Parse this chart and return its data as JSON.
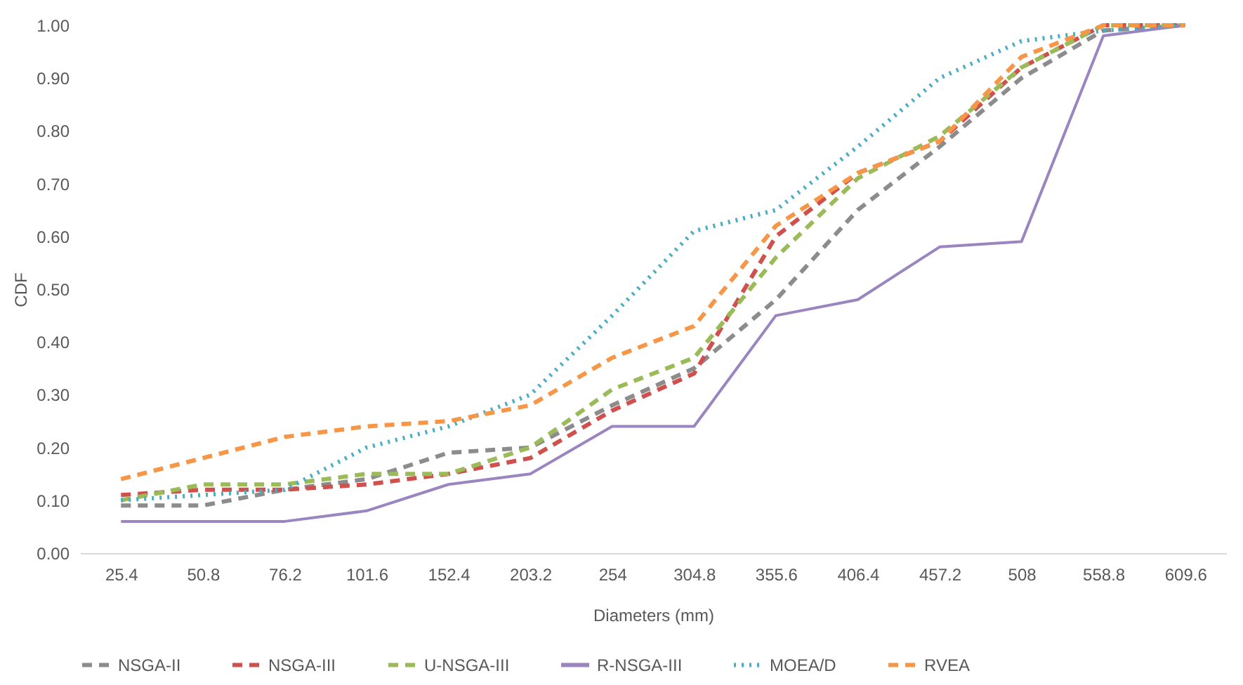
{
  "chart_data": {
    "type": "line",
    "xlabel": "Diameters (mm)",
    "ylabel": "CDF",
    "categories": [
      "25.4",
      "50.8",
      "76.2",
      "101.6",
      "152.4",
      "203.2",
      "254",
      "304.8",
      "355.6",
      "406.4",
      "457.2",
      "508",
      "558.8",
      "609.6"
    ],
    "series": [
      {
        "name": "NSGA-II",
        "color": "#8c8c8c",
        "line_style": "dashed",
        "values": [
          0.09,
          0.09,
          0.12,
          0.14,
          0.19,
          0.2,
          0.28,
          0.35,
          0.48,
          0.65,
          0.77,
          0.9,
          0.99,
          1.0
        ]
      },
      {
        "name": "NSGA-III",
        "color": "#d0504e",
        "line_style": "dashed",
        "values": [
          0.11,
          0.12,
          0.12,
          0.13,
          0.15,
          0.18,
          0.27,
          0.34,
          0.6,
          0.72,
          0.78,
          0.92,
          1.0,
          1.0
        ]
      },
      {
        "name": "U-NSGA-III",
        "color": "#9bbb59",
        "line_style": "dashed",
        "values": [
          0.1,
          0.13,
          0.13,
          0.15,
          0.15,
          0.2,
          0.31,
          0.37,
          0.56,
          0.71,
          0.79,
          0.92,
          1.0,
          1.0
        ]
      },
      {
        "name": "R-NSGA-III",
        "color": "#9a85c0",
        "line_style": "solid",
        "values": [
          0.06,
          0.06,
          0.06,
          0.08,
          0.13,
          0.15,
          0.24,
          0.24,
          0.45,
          0.48,
          0.58,
          0.59,
          0.98,
          1.0
        ]
      },
      {
        "name": "MOEA/D",
        "color": "#4bacc6",
        "line_style": "dotted",
        "values": [
          0.1,
          0.11,
          0.12,
          0.2,
          0.24,
          0.3,
          0.45,
          0.61,
          0.65,
          0.77,
          0.9,
          0.97,
          0.99,
          1.0
        ]
      },
      {
        "name": "RVEA",
        "color": "#f79646",
        "line_style": "dashed",
        "values": [
          0.14,
          0.18,
          0.22,
          0.24,
          0.25,
          0.28,
          0.37,
          0.43,
          0.62,
          0.72,
          0.78,
          0.94,
          1.0,
          1.0
        ]
      }
    ],
    "ylim": [
      0,
      1
    ],
    "yticks": [
      {
        "value": 0,
        "label": "0.00"
      },
      {
        "value": 0.1,
        "label": "0.10"
      },
      {
        "value": 0.2,
        "label": "0.20"
      },
      {
        "value": 0.3,
        "label": "0.30"
      },
      {
        "value": 0.4,
        "label": "0.40"
      },
      {
        "value": 0.5,
        "label": "0.50"
      },
      {
        "value": 0.6,
        "label": "0.60"
      },
      {
        "value": 0.7,
        "label": "0.70"
      },
      {
        "value": 0.8,
        "label": "0.80"
      },
      {
        "value": 0.9,
        "label": "0.90"
      },
      {
        "value": 1,
        "label": "1.00"
      }
    ],
    "grid": false,
    "legend": "bottom",
    "marker": "none"
  }
}
